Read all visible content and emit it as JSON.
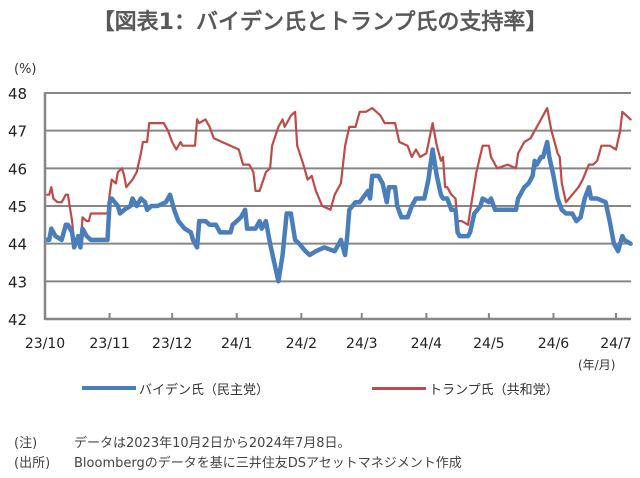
{
  "title": "【図表1：バイデン氏とトランプ氏の支持率】",
  "notes": [
    {
      "label": "(注)",
      "text": "データは2023年10月2日から2024年7月8日。"
    },
    {
      "label": "(出所)",
      "text": "Bloombergのデータを基に三井住友DSアセットマネジメント作成"
    }
  ],
  "colors": {
    "biden": "#4a7ebb",
    "trump": "#be4b48",
    "grid": "#868686"
  },
  "chart_data": {
    "type": "line",
    "title": "【図表1：バイデン氏とトランプ氏の支持率】",
    "ylabel": "(%)",
    "xlabel": "(年/月)",
    "x_unit": "days since 2023-10-01",
    "xlim": [
      0,
      282
    ],
    "ylim": [
      42,
      48
    ],
    "yticks": [
      "42",
      "43",
      "44",
      "45",
      "46",
      "47",
      "48"
    ],
    "xticks": [
      {
        "label": "23/10",
        "day": 0
      },
      {
        "label": "23/11",
        "day": 31
      },
      {
        "label": "23/12",
        "day": 61
      },
      {
        "label": "24/1",
        "day": 92
      },
      {
        "label": "24/2",
        "day": 123
      },
      {
        "label": "24/3",
        "day": 152
      },
      {
        "label": "24/4",
        "day": 183
      },
      {
        "label": "24/5",
        "day": 213
      },
      {
        "label": "24/6",
        "day": 244
      },
      {
        "label": "24/7",
        "day": 274
      }
    ],
    "grid": true,
    "legend_position": "bottom",
    "series": [
      {
        "name": "バイデン氏（民主党）",
        "color": "#4a7ebb",
        "x": [
          1,
          2,
          3,
          5,
          8,
          10,
          11,
          13,
          14,
          16,
          17,
          18,
          20,
          22,
          30,
          31,
          32,
          35,
          36,
          38,
          41,
          42,
          44,
          46,
          48,
          49,
          51,
          54,
          58,
          60,
          62,
          64,
          67,
          70,
          71,
          73,
          74,
          77,
          79,
          82,
          84,
          89,
          90,
          94,
          96,
          97,
          101,
          103,
          104,
          106,
          108,
          112,
          114,
          116,
          118,
          120,
          122,
          125,
          127,
          130,
          134,
          139,
          142,
          144,
          145,
          146,
          149,
          151,
          155,
          156,
          157,
          160,
          162,
          164,
          165,
          168,
          169,
          171,
          174,
          176,
          178,
          182,
          184,
          186,
          188,
          190,
          191,
          193,
          195,
          197,
          198,
          199,
          203,
          204,
          206,
          209,
          210,
          213,
          214,
          216,
          226,
          227,
          230,
          232,
          234,
          235,
          236,
          238,
          239,
          241,
          242,
          244,
          246,
          248,
          250,
          253,
          255,
          257,
          259,
          261,
          262,
          265,
          269,
          271,
          273,
          275,
          277,
          278,
          281
        ],
        "values": [
          44.1,
          44.1,
          44.4,
          44.2,
          44.1,
          44.5,
          44.5,
          44.3,
          43.9,
          44.2,
          43.9,
          44.4,
          44.2,
          44.1,
          44.1,
          45.1,
          45.2,
          45.0,
          44.8,
          44.9,
          45.0,
          45.2,
          45.0,
          45.2,
          45.1,
          44.9,
          45.0,
          45.0,
          45.1,
          45.3,
          44.9,
          44.6,
          44.4,
          44.3,
          44.1,
          43.9,
          44.6,
          44.6,
          44.5,
          44.5,
          44.3,
          44.3,
          44.5,
          44.7,
          44.9,
          44.4,
          44.4,
          44.6,
          44.4,
          44.6,
          44.0,
          43.0,
          43.7,
          44.8,
          44.8,
          44.1,
          44.0,
          43.8,
          43.7,
          43.8,
          43.9,
          43.8,
          44.1,
          43.7,
          44.2,
          44.9,
          45.1,
          45.1,
          45.4,
          45.2,
          45.8,
          45.8,
          45.6,
          45.1,
          45.5,
          45.5,
          45.0,
          44.7,
          44.7,
          45.0,
          45.2,
          45.2,
          45.7,
          46.5,
          45.8,
          45.3,
          45.2,
          45.2,
          44.9,
          44.9,
          44.3,
          44.2,
          44.2,
          44.3,
          44.8,
          45.0,
          45.2,
          45.1,
          45.2,
          44.9,
          44.9,
          45.2,
          45.5,
          45.6,
          45.8,
          46.2,
          46.1,
          46.3,
          46.3,
          46.7,
          46.3,
          45.8,
          45.2,
          44.9,
          44.8,
          44.8,
          44.6,
          44.7,
          45.2,
          45.5,
          45.2,
          45.2,
          45.1,
          44.6,
          44.0,
          43.8,
          44.2,
          44.1,
          44.0
        ]
      },
      {
        "name": "トランプ氏（共和党）",
        "color": "#be4b48",
        "x": [
          1,
          2,
          3,
          4,
          6,
          8,
          10,
          11,
          13,
          14,
          16,
          17,
          18,
          20,
          21,
          22,
          30,
          31,
          32,
          34,
          35,
          37,
          38,
          39,
          42,
          44,
          46,
          47,
          49,
          50,
          57,
          59,
          61,
          63,
          65,
          66,
          72,
          73,
          74,
          77,
          79,
          81,
          85,
          89,
          93,
          95,
          98,
          100,
          101,
          103,
          106,
          108,
          109,
          112,
          114,
          115,
          118,
          120,
          121,
          124,
          126,
          128,
          130,
          133,
          137,
          139,
          142,
          144,
          146,
          149,
          151,
          154,
          157,
          161,
          163,
          168,
          170,
          174,
          176,
          178,
          180,
          183,
          186,
          188,
          190,
          191,
          192,
          193,
          195,
          197,
          198,
          200,
          203,
          205,
          207,
          210,
          213,
          214,
          217,
          222,
          226,
          227,
          230,
          233,
          235,
          238,
          240,
          241,
          243,
          245,
          246,
          247,
          248,
          250,
          253,
          256,
          258,
          261,
          263,
          265,
          267,
          271,
          274,
          276,
          277,
          281
        ],
        "values": [
          45.3,
          45.3,
          45.5,
          45.2,
          45.1,
          45.1,
          45.3,
          45.3,
          44.6,
          44.0,
          44.2,
          43.9,
          44.7,
          44.6,
          44.6,
          44.8,
          44.8,
          45.3,
          45.7,
          45.6,
          45.9,
          46.0,
          45.8,
          45.5,
          45.7,
          45.9,
          46.4,
          46.7,
          46.7,
          47.2,
          47.2,
          47.0,
          46.7,
          46.5,
          46.7,
          46.6,
          46.6,
          47.3,
          47.2,
          47.3,
          47.1,
          46.8,
          46.7,
          46.6,
          46.5,
          46.1,
          46.1,
          45.9,
          45.4,
          45.4,
          45.9,
          46.0,
          46.6,
          47.1,
          47.3,
          47.1,
          47.4,
          47.5,
          46.6,
          46.1,
          45.7,
          45.8,
          45.4,
          45.0,
          44.9,
          45.3,
          45.6,
          46.6,
          47.1,
          47.1,
          47.5,
          47.5,
          47.6,
          47.4,
          47.2,
          47.2,
          46.7,
          46.6,
          46.3,
          46.5,
          46.3,
          46.4,
          47.2,
          46.6,
          46.2,
          46.3,
          45.5,
          45.5,
          45.3,
          45.2,
          44.6,
          44.6,
          44.5,
          45.2,
          45.9,
          46.6,
          46.6,
          46.3,
          46.0,
          46.1,
          46.0,
          46.4,
          46.7,
          46.8,
          47.0,
          47.3,
          47.5,
          47.6,
          47.0,
          46.6,
          46.4,
          46.3,
          45.6,
          45.1,
          45.3,
          45.5,
          45.7,
          46.1,
          46.1,
          46.2,
          46.6,
          46.6,
          46.5,
          47.0,
          47.5,
          47.3
        ]
      }
    ]
  }
}
